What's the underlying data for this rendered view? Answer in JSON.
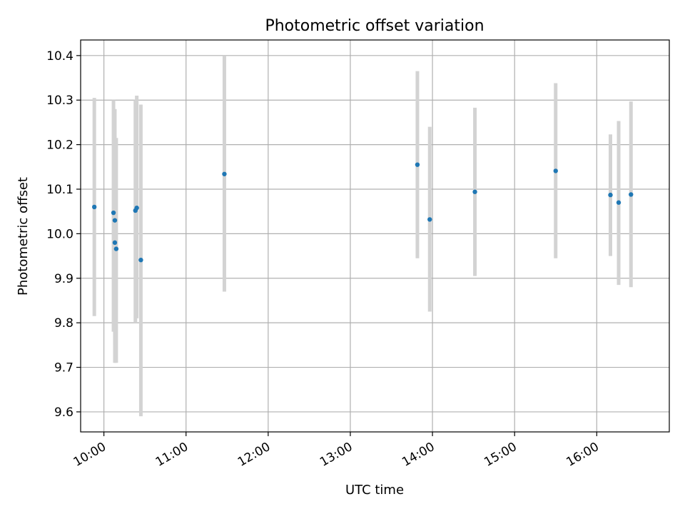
{
  "chart_data": {
    "type": "scatter",
    "title": "Photometric offset variation",
    "xlabel": "UTC time",
    "ylabel": "Photometric offset",
    "xlim": [
      "09:43",
      "16:53"
    ],
    "ylim": [
      9.555,
      10.435
    ],
    "x_ticks": [
      "10:00",
      "11:00",
      "12:00",
      "13:00",
      "14:00",
      "15:00",
      "16:00"
    ],
    "y_ticks": [
      9.6,
      9.7,
      9.8,
      9.9,
      10.0,
      10.1,
      10.2,
      10.3,
      10.4
    ],
    "grid": true,
    "point_color": "#1f77b4",
    "errorbar_color": "#d3d3d3",
    "points": [
      {
        "x": "09:53",
        "y": 10.06,
        "err_low": 9.815,
        "err_high": 10.305
      },
      {
        "x": "10:07",
        "y": 10.047,
        "err_low": 9.78,
        "err_high": 10.3
      },
      {
        "x": "10:08",
        "y": 10.03,
        "err_low": 9.71,
        "err_high": 10.28
      },
      {
        "x": "10:08",
        "y": 9.98,
        "err_low": 9.75,
        "err_high": 10.22
      },
      {
        "x": "10:09",
        "y": 9.966,
        "err_low": 9.71,
        "err_high": 10.215
      },
      {
        "x": "10:23",
        "y": 10.052,
        "err_low": 9.8,
        "err_high": 10.3
      },
      {
        "x": "10:24",
        "y": 10.058,
        "err_low": 9.81,
        "err_high": 10.31
      },
      {
        "x": "10:27",
        "y": 9.941,
        "err_low": 9.59,
        "err_high": 10.29
      },
      {
        "x": "11:28",
        "y": 10.134,
        "err_low": 9.87,
        "err_high": 10.4
      },
      {
        "x": "13:49",
        "y": 10.155,
        "err_low": 9.945,
        "err_high": 10.365
      },
      {
        "x": "13:58",
        "y": 10.032,
        "err_low": 9.825,
        "err_high": 10.24
      },
      {
        "x": "14:31",
        "y": 10.094,
        "err_low": 9.905,
        "err_high": 10.283
      },
      {
        "x": "15:30",
        "y": 10.141,
        "err_low": 9.945,
        "err_high": 10.338
      },
      {
        "x": "16:10",
        "y": 10.087,
        "err_low": 9.95,
        "err_high": 10.223
      },
      {
        "x": "16:16",
        "y": 10.07,
        "err_low": 9.885,
        "err_high": 10.253
      },
      {
        "x": "16:25",
        "y": 10.088,
        "err_low": 9.88,
        "err_high": 10.297
      }
    ]
  }
}
